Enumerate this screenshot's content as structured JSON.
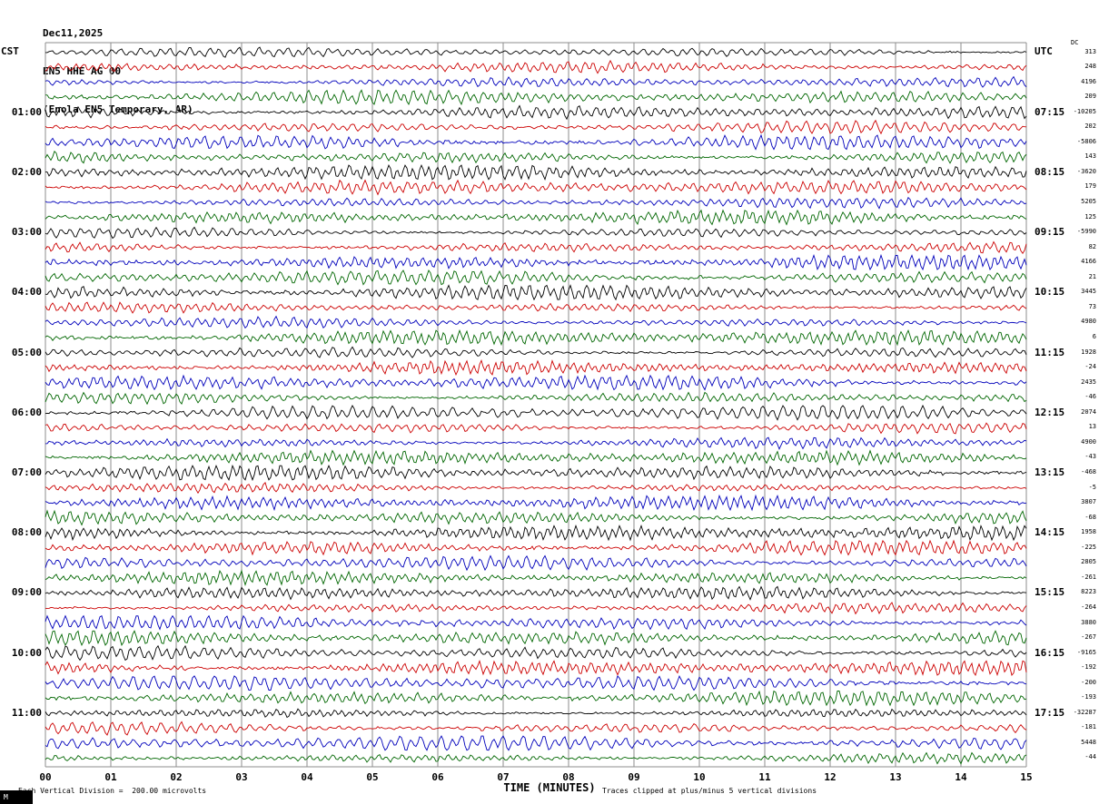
{
  "header": {
    "date": "Dec11,2025",
    "station": "EN5 HHE AG 00",
    "location": "(Enola EN5 Temporary, AR)"
  },
  "axes": {
    "left_timezone_label": "CST",
    "right_timezone_label": "UTC",
    "dc_column_label": "DC",
    "x_axis_title": "TIME (MINUTES)",
    "minute_labels": [
      "00",
      "01",
      "02",
      "03",
      "04",
      "05",
      "06",
      "07",
      "08",
      "09",
      "10",
      "11",
      "12",
      "13",
      "14",
      "15"
    ],
    "cst_hours": [
      "01:00",
      "02:00",
      "03:00",
      "04:00",
      "05:00",
      "06:00",
      "07:00",
      "08:00",
      "09:00",
      "10:00",
      "11:00"
    ],
    "utc_hours": [
      "07:15",
      "08:15",
      "09:15",
      "10:15",
      "11:15",
      "12:15",
      "13:15",
      "14:15",
      "15:15",
      "16:15",
      "17:15"
    ]
  },
  "footer": {
    "scale_note": "Each Vertical Division =  200.00 microvolts",
    "clip_note": "Traces clipped at plus/minus 5 vertical divisions",
    "corner_mark": "M"
  },
  "chart_data": {
    "type": "line",
    "subtype": "helicorder-seismogram",
    "title": "EN5 HHE AG 00 (Enola EN5 Temporary, AR) Dec11,2025",
    "x_axis": {
      "label": "TIME (MINUTES)",
      "min": 0,
      "max": 15,
      "tick_interval": 1,
      "grid": true
    },
    "rows": 48,
    "minutes_per_row": 15,
    "first_row_start_cst": "00:00",
    "row_color_cycle": [
      "#000000",
      "#cc0000",
      "#0000bb",
      "#006600"
    ],
    "grid_color": "#8c8c8c",
    "dc_values": [
      313,
      248,
      4196,
      209,
      -10205,
      202,
      -5806,
      143,
      -3620,
      179,
      5205,
      125,
      -5990,
      82,
      4166,
      21,
      3445,
      73,
      4980,
      6,
      1928,
      -24,
      2435,
      -46,
      2074,
      13,
      4900,
      -43,
      -468,
      -5,
      3807,
      -68,
      1958,
      -225,
      2805,
      -261,
      8223,
      -264,
      3880,
      -267,
      -9165,
      -192,
      -200,
      -193,
      -32287,
      -181,
      5448,
      -44
    ],
    "vertical_division_microvolts": 200.0,
    "clip_divisions": 5,
    "waveform_note": "continuous ambient seismic noise on every 15-minute trace, amplitude roughly 0.2-0.5 vertical division; no discrete event values readable"
  }
}
